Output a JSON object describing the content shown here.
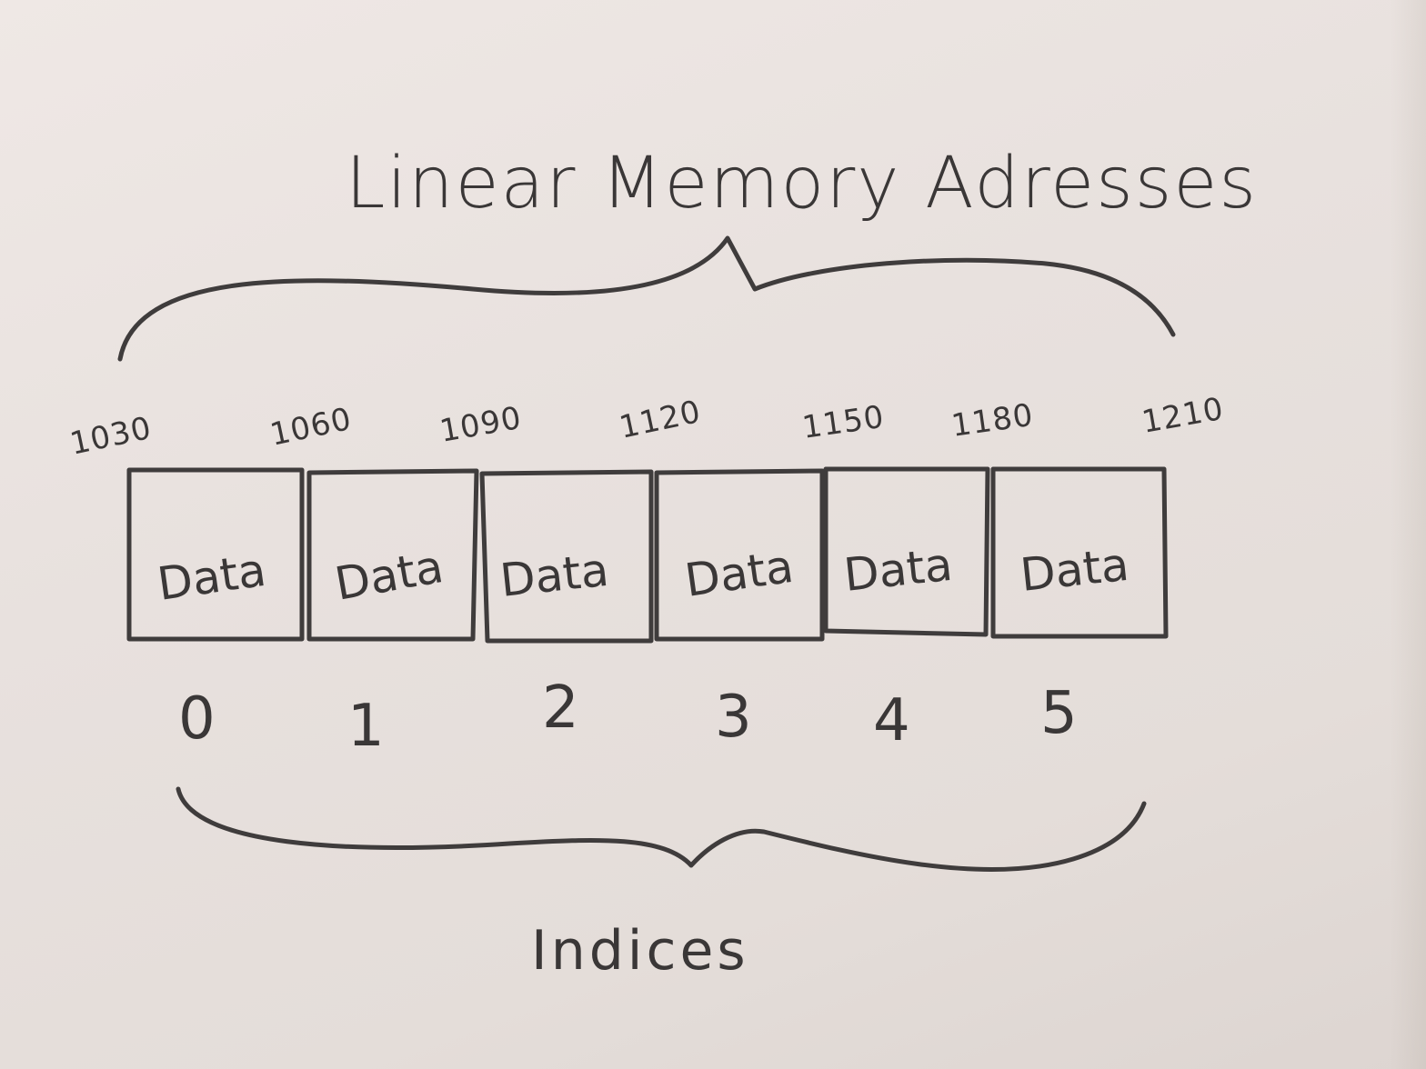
{
  "diagram": {
    "title": "Linear Memory Adresses",
    "bottom_label": "Indices",
    "addresses": [
      "1030",
      "1060",
      "1090",
      "1120",
      "1150",
      "1180",
      "1210"
    ],
    "cells": [
      {
        "label": "Data",
        "index": "0"
      },
      {
        "label": "Data",
        "index": "1"
      },
      {
        "label": "Data",
        "index": "2"
      },
      {
        "label": "Data",
        "index": "3"
      },
      {
        "label": "Data",
        "index": "4"
      },
      {
        "label": "Data",
        "index": "5"
      }
    ],
    "colors": {
      "pencil": "#3f3c3c",
      "paper": "#ece5e2"
    }
  }
}
